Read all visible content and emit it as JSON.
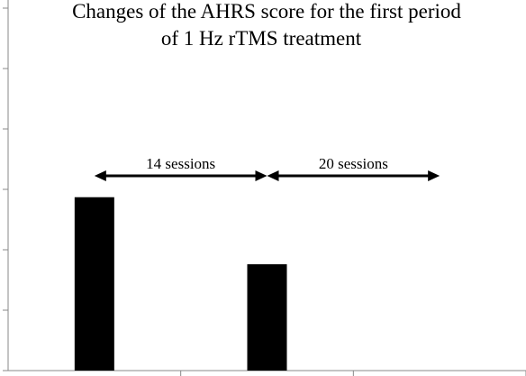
{
  "chart_data": {
    "type": "bar",
    "title_lines": [
      "Changes of the AHRS score for the first period",
      "of 1 Hz rTMS treatment"
    ],
    "xlabel": "",
    "ylabel": "",
    "ylim": [
      0,
      6
    ],
    "y_ticks": [
      0,
      1,
      2,
      3,
      4,
      5,
      6
    ],
    "tick_labels_visible": false,
    "grid": false,
    "legend": "none",
    "categories": [
      "",
      "",
      ""
    ],
    "values": [
      2.87,
      1.76,
      null
    ],
    "bar_color": "#000000",
    "annotations": [
      {
        "label": "14 sessions",
        "from_category": 0,
        "to_category": 1
      },
      {
        "label": "20 sessions",
        "from_category": 1,
        "to_category": 2
      }
    ]
  }
}
